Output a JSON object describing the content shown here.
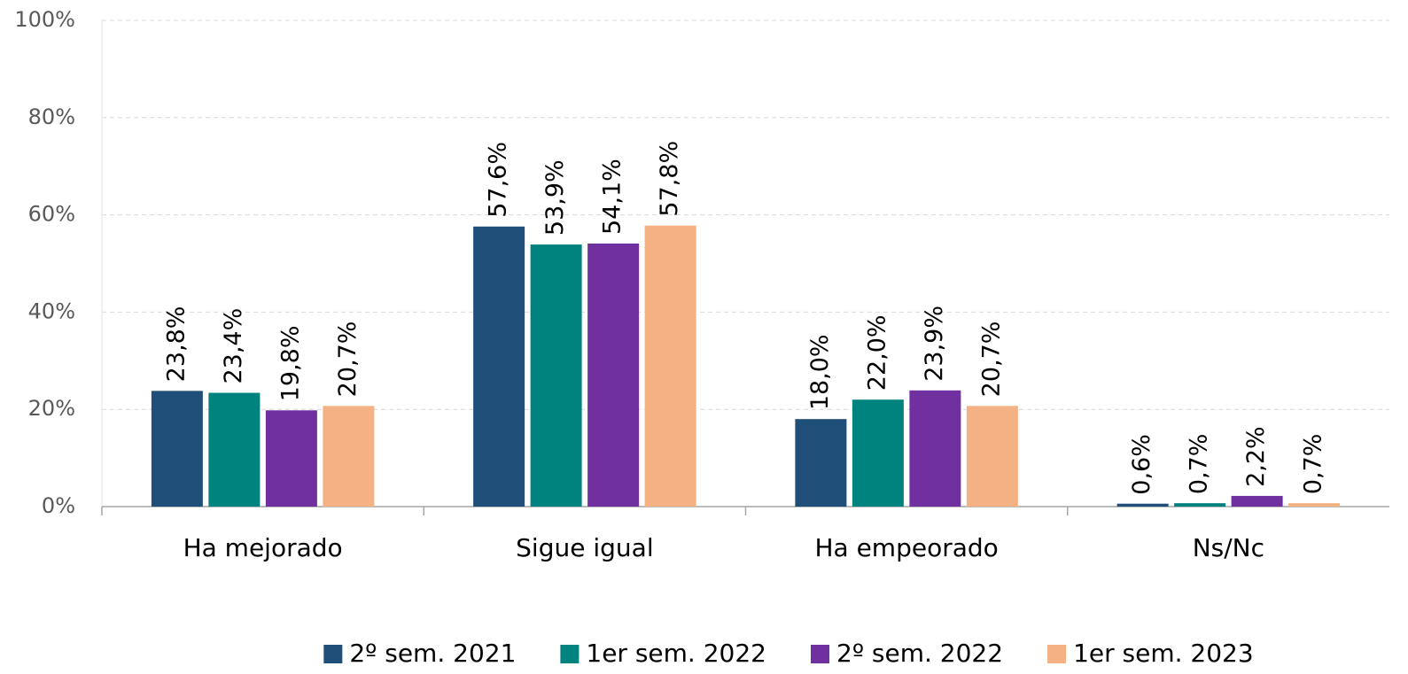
{
  "chart_data": {
    "type": "bar",
    "categories": [
      "Ha mejorado",
      "Sigue igual",
      "Ha empeorado",
      "Ns/Nc"
    ],
    "series": [
      {
        "name": "2º sem. 2021",
        "color": "#1f4e79",
        "values": [
          23.8,
          57.6,
          18.0,
          0.6
        ],
        "value_labels": [
          "23,8%",
          "57,6%",
          "18,0%",
          "0,6%"
        ]
      },
      {
        "name": "1er sem. 2022",
        "color": "#00827f",
        "values": [
          23.4,
          53.9,
          22.0,
          0.7
        ],
        "value_labels": [
          "23,4%",
          "53,9%",
          "22,0%",
          "0,7%"
        ]
      },
      {
        "name": "2º sem. 2022",
        "color": "#7030a0",
        "values": [
          19.8,
          54.1,
          23.9,
          2.2
        ],
        "value_labels": [
          "19,8%",
          "54,1%",
          "23,9%",
          "2,2%"
        ]
      },
      {
        "name": "1er sem. 2023",
        "color": "#f4b183",
        "values": [
          20.7,
          57.8,
          20.7,
          0.7
        ],
        "value_labels": [
          "20,7%",
          "57,8%",
          "20,7%",
          "0,7%"
        ]
      }
    ],
    "ylim": [
      0,
      100
    ],
    "yticks": [
      {
        "value": 0,
        "label": "0%"
      },
      {
        "value": 20,
        "label": "20%"
      },
      {
        "value": 40,
        "label": "40%"
      },
      {
        "value": 60,
        "label": "60%"
      },
      {
        "value": 80,
        "label": "80%"
      },
      {
        "value": 100,
        "label": "100%"
      }
    ],
    "grid": true,
    "legend": "bottom"
  }
}
